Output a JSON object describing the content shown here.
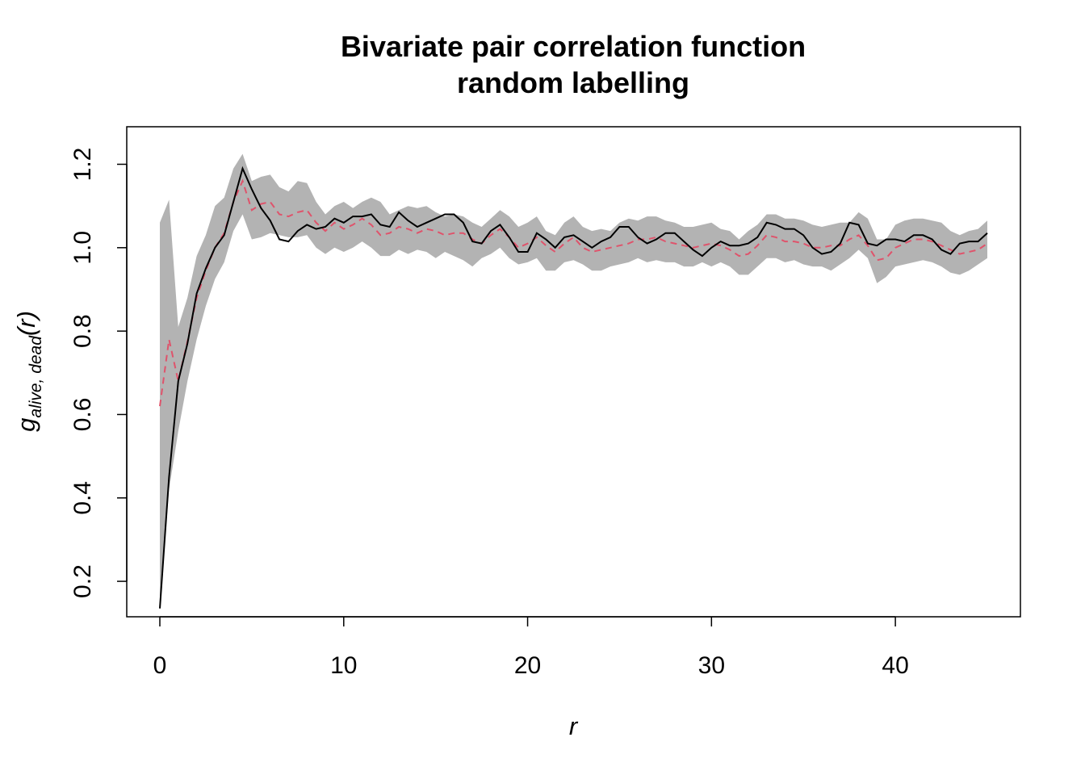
{
  "chart_data": {
    "type": "line",
    "title": [
      "Bivariate pair correlation function",
      "random labelling"
    ],
    "xlabel": "r",
    "ylabel": {
      "main": "g",
      "sub": "alive, dead",
      "arg": "(r)"
    },
    "xlim": [
      -1.8,
      46.8
    ],
    "ylim": [
      0.115,
      1.29
    ],
    "xticks": [
      0,
      10,
      20,
      30,
      40
    ],
    "xtick_labels": [
      "0",
      "10",
      "20",
      "30",
      "40"
    ],
    "yticks": [
      0.2,
      0.4,
      0.6,
      0.8,
      1.0,
      1.2
    ],
    "ytick_labels": [
      "0.2",
      "0.4",
      "0.6",
      "0.8",
      "1.0",
      "1.2"
    ],
    "grid": false,
    "legend": "none",
    "colors": {
      "observed": "#000000",
      "theoretical": "#DF536B",
      "envelope": "#B3B3B3"
    },
    "r": [
      0,
      0.5,
      1,
      1.5,
      2,
      2.5,
      3,
      3.5,
      4,
      4.5,
      5,
      5.5,
      6,
      6.5,
      7,
      7.5,
      8,
      8.5,
      9,
      9.5,
      10,
      10.5,
      11,
      11.5,
      12,
      12.5,
      13,
      13.5,
      14,
      14.5,
      15,
      15.5,
      16,
      16.5,
      17,
      17.5,
      18,
      18.5,
      19,
      19.5,
      20,
      20.5,
      21,
      21.5,
      22,
      22.5,
      23,
      23.5,
      24,
      24.5,
      25,
      25.5,
      26,
      26.5,
      27,
      27.5,
      28,
      28.5,
      29,
      29.5,
      30,
      30.5,
      31,
      31.5,
      32,
      32.5,
      33,
      33.5,
      34,
      34.5,
      35,
      35.5,
      36,
      36.5,
      37,
      37.5,
      38,
      38.5,
      39,
      39.5,
      40,
      40.5,
      41,
      41.5,
      42,
      42.5,
      43,
      43.5,
      44,
      44.5,
      45
    ],
    "series": [
      {
        "role": "envelope",
        "upper": [
          1.06,
          1.115,
          0.81,
          0.88,
          0.98,
          1.03,
          1.1,
          1.12,
          1.19,
          1.225,
          1.16,
          1.17,
          1.175,
          1.145,
          1.135,
          1.16,
          1.155,
          1.11,
          1.08,
          1.1,
          1.11,
          1.095,
          1.11,
          1.12,
          1.11,
          1.08,
          1.09,
          1.1,
          1.095,
          1.1,
          1.085,
          1.075,
          1.08,
          1.075,
          1.06,
          1.05,
          1.07,
          1.09,
          1.075,
          1.05,
          1.06,
          1.075,
          1.04,
          1.03,
          1.06,
          1.075,
          1.05,
          1.04,
          1.045,
          1.04,
          1.06,
          1.07,
          1.065,
          1.075,
          1.075,
          1.065,
          1.06,
          1.05,
          1.05,
          1.055,
          1.06,
          1.045,
          1.04,
          1.02,
          1.04,
          1.055,
          1.08,
          1.08,
          1.07,
          1.07,
          1.065,
          1.055,
          1.05,
          1.055,
          1.06,
          1.06,
          1.085,
          1.07,
          1.02,
          1.02,
          1.055,
          1.065,
          1.07,
          1.07,
          1.065,
          1.06,
          1.04,
          1.03,
          1.04,
          1.045,
          1.065
        ],
        "lower": [
          0.14,
          0.42,
          0.56,
          0.68,
          0.78,
          0.86,
          0.925,
          0.965,
          1.04,
          1.08,
          1.02,
          1.025,
          1.035,
          1.03,
          1.025,
          1.025,
          1.03,
          1.0,
          0.985,
          1.0,
          0.99,
          1.0,
          1.015,
          1.0,
          0.98,
          0.98,
          0.995,
          0.985,
          0.995,
          0.99,
          0.975,
          0.99,
          0.98,
          0.97,
          0.955,
          0.975,
          0.985,
          1.0,
          0.975,
          0.96,
          0.965,
          0.975,
          0.945,
          0.945,
          0.965,
          0.97,
          0.96,
          0.945,
          0.945,
          0.955,
          0.96,
          0.965,
          0.975,
          0.965,
          0.97,
          0.965,
          0.965,
          0.955,
          0.955,
          0.965,
          0.955,
          0.965,
          0.955,
          0.935,
          0.935,
          0.955,
          0.975,
          0.975,
          0.965,
          0.97,
          0.96,
          0.955,
          0.955,
          0.945,
          0.96,
          0.975,
          0.995,
          0.975,
          0.915,
          0.93,
          0.955,
          0.96,
          0.965,
          0.97,
          0.965,
          0.955,
          0.94,
          0.935,
          0.945,
          0.96,
          0.975
        ]
      },
      {
        "role": "observed",
        "values": [
          0.135,
          0.45,
          0.68,
          0.77,
          0.89,
          0.95,
          1.0,
          1.03,
          1.11,
          1.19,
          1.14,
          1.095,
          1.065,
          1.02,
          1.015,
          1.04,
          1.055,
          1.045,
          1.05,
          1.07,
          1.06,
          1.075,
          1.075,
          1.08,
          1.055,
          1.05,
          1.085,
          1.065,
          1.05,
          1.06,
          1.07,
          1.08,
          1.08,
          1.06,
          1.015,
          1.01,
          1.04,
          1.055,
          1.025,
          0.99,
          0.99,
          1.035,
          1.02,
          1.0,
          1.025,
          1.03,
          1.015,
          1.0,
          1.015,
          1.025,
          1.05,
          1.05,
          1.025,
          1.01,
          1.02,
          1.035,
          1.035,
          1.015,
          0.995,
          0.98,
          1.0,
          1.015,
          1.005,
          1.005,
          1.01,
          1.025,
          1.06,
          1.055,
          1.045,
          1.045,
          1.03,
          1.0,
          0.985,
          0.99,
          1.01,
          1.06,
          1.055,
          1.01,
          1.005,
          1.02,
          1.02,
          1.015,
          1.03,
          1.03,
          1.02,
          0.995,
          0.985,
          1.01,
          1.015,
          1.015,
          1.035
        ]
      },
      {
        "role": "theoretical",
        "values": [
          0.62,
          0.78,
          0.68,
          0.775,
          0.88,
          0.945,
          1.0,
          1.035,
          1.11,
          1.16,
          1.09,
          1.105,
          1.11,
          1.08,
          1.075,
          1.085,
          1.09,
          1.06,
          1.04,
          1.06,
          1.045,
          1.055,
          1.07,
          1.055,
          1.03,
          1.035,
          1.05,
          1.045,
          1.035,
          1.045,
          1.04,
          1.03,
          1.035,
          1.035,
          1.02,
          1.01,
          1.03,
          1.045,
          1.025,
          1.0,
          1.01,
          1.025,
          1.005,
          0.99,
          1.01,
          1.025,
          1.0,
          0.99,
          0.995,
          1.0,
          1.005,
          1.01,
          1.02,
          1.02,
          1.025,
          1.015,
          1.01,
          1.005,
          1.0,
          1.005,
          1.01,
          1.005,
          0.995,
          0.98,
          0.985,
          1.005,
          1.03,
          1.025,
          1.015,
          1.015,
          1.01,
          1.0,
          1.0,
          1.005,
          1.005,
          1.02,
          1.03,
          1.005,
          0.97,
          0.975,
          1.0,
          1.01,
          1.02,
          1.02,
          1.015,
          1.005,
          0.995,
          0.985,
          0.99,
          0.995,
          1.01
        ]
      }
    ]
  }
}
